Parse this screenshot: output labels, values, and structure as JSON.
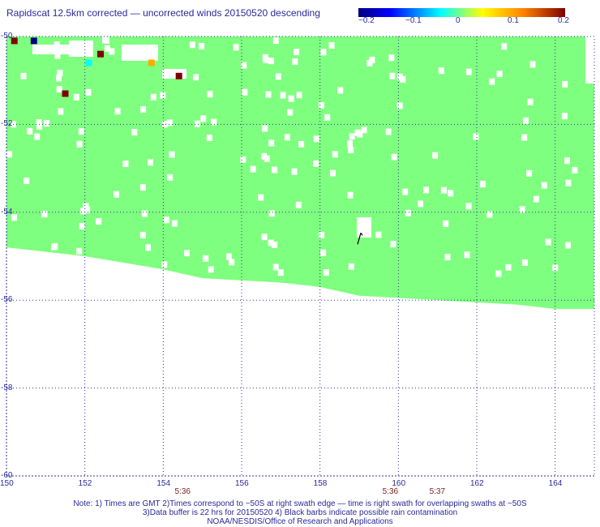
{
  "title": "Rapidscat 12.5km corrected — uncorrected winds 20150520 descending",
  "colorbar": {
    "labels": [
      "−0.2",
      "−0.1",
      "0",
      "0.1",
      "0.2"
    ],
    "colors": [
      "#00007f",
      "#0000ff",
      "#00ffff",
      "#ffff00",
      "#ff7f00",
      "#7f0000"
    ]
  },
  "chart_data": {
    "type": "heatmap",
    "longitudes": [
      "150",
      "152",
      "154",
      "156",
      "158",
      "160",
      "162",
      "164"
    ],
    "latitudes": [
      "-50",
      "-52",
      "-54",
      "-56",
      "-58",
      "-60"
    ],
    "lon_range": [
      150,
      165
    ],
    "lat_range": [
      -50,
      -60
    ],
    "grid": true,
    "swath_color": "#7fff7f",
    "swath_southern_edge": [
      [
        150,
        -54.8
      ],
      [
        152,
        -55.0
      ],
      [
        154,
        -55.3
      ],
      [
        155,
        -55.5
      ],
      [
        157,
        -55.6
      ],
      [
        158,
        -55.7
      ],
      [
        159,
        -55.9
      ],
      [
        161,
        -56.0
      ],
      [
        163,
        -56.1
      ],
      [
        164,
        -56.2
      ],
      [
        165,
        -56.2
      ]
    ],
    "highlighted_cells": [
      {
        "lon": 150.2,
        "lat": -50.1,
        "value": 0.2
      },
      {
        "lon": 150.7,
        "lat": -50.1,
        "value": -0.2
      },
      {
        "lon": 152.4,
        "lat": -50.4,
        "value": 0.2
      },
      {
        "lon": 152.1,
        "lat": -50.6,
        "value": -0.02
      },
      {
        "lon": 153.7,
        "lat": -50.6,
        "value": 0.12
      },
      {
        "lon": 154.4,
        "lat": -50.9,
        "value": 0.2
      },
      {
        "lon": 151.5,
        "lat": -51.3,
        "value": 0.2
      }
    ],
    "times": [
      {
        "lon": 154.5,
        "label": "5:36"
      },
      {
        "lon": 159.8,
        "label": "5:36"
      },
      {
        "lon": 161.0,
        "label": "5:37"
      }
    ],
    "rain_flag": {
      "lon": 159.0,
      "lat": -54.6
    }
  },
  "notes": [
    "Note: 1) Times are GMT 2)Times correspond to −50S at right swath edge — time is right swath for overlapping swaths at −50S",
    "3)Data buffer is 22 hrs for 20150520 4) Black barbs indicate possible rain contamination",
    "NOAA/NESDIS/Office of Research and Applications"
  ]
}
